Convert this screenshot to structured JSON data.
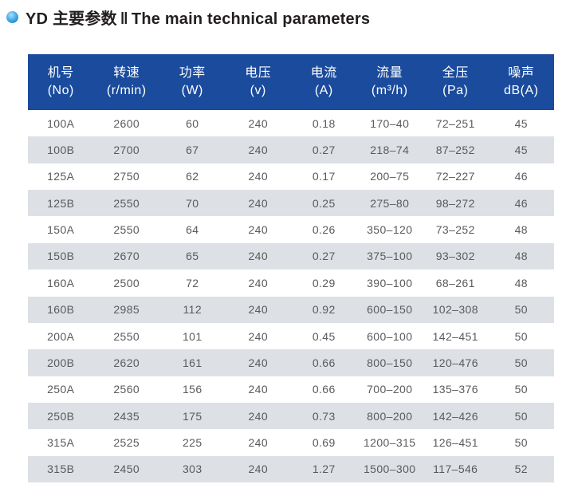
{
  "header": {
    "bullet_icon": "blue-sphere-bullet",
    "title_zh": "YD 主要参数",
    "separator": "‖",
    "title_en": "The main technical parameters"
  },
  "colors": {
    "header_bg": "#1a4b9d",
    "header_text": "#ffffff",
    "row_alt_bg": "#dde1e6",
    "row_text": "#595a5c",
    "title_text": "#231f20",
    "bullet_blue": "#0e74bd"
  },
  "table": {
    "columns": [
      {
        "line1": "机号",
        "line2": "(No)"
      },
      {
        "line1": "转速",
        "line2": "(r/min)"
      },
      {
        "line1": "功率",
        "line2": "(W)"
      },
      {
        "line1": "电压",
        "line2": "(v)"
      },
      {
        "line1": "电流",
        "line2": "(A)"
      },
      {
        "line1": "流量",
        "line2": "(m³/h)"
      },
      {
        "line1": "全压",
        "line2": "(Pa)"
      },
      {
        "line1": "噪声",
        "line2": "dB(A)"
      }
    ],
    "rows": [
      [
        "100A",
        "2600",
        "60",
        "240",
        "0.18",
        "170–40",
        "72–251",
        "45"
      ],
      [
        "100B",
        "2700",
        "67",
        "240",
        "0.27",
        "218–74",
        "87–252",
        "45"
      ],
      [
        "125A",
        "2750",
        "62",
        "240",
        "0.17",
        "200–75",
        "72–227",
        "46"
      ],
      [
        "125B",
        "2550",
        "70",
        "240",
        "0.25",
        "275–80",
        "98–272",
        "46"
      ],
      [
        "150A",
        "2550",
        "64",
        "240",
        "0.26",
        "350–120",
        "73–252",
        "48"
      ],
      [
        "150B",
        "2670",
        "65",
        "240",
        "0.27",
        "375–100",
        "93–302",
        "48"
      ],
      [
        "160A",
        "2500",
        "72",
        "240",
        "0.29",
        "390–100",
        "68–261",
        "48"
      ],
      [
        "160B",
        "2985",
        "112",
        "240",
        "0.92",
        "600–150",
        "102–308",
        "50"
      ],
      [
        "200A",
        "2550",
        "101",
        "240",
        "0.45",
        "600–100",
        "142–451",
        "50"
      ],
      [
        "200B",
        "2620",
        "161",
        "240",
        "0.66",
        "800–150",
        "120–476",
        "50"
      ],
      [
        "250A",
        "2560",
        "156",
        "240",
        "0.66",
        "700–200",
        "135–376",
        "50"
      ],
      [
        "250B",
        "2435",
        "175",
        "240",
        "0.73",
        "800–200",
        "142–426",
        "50"
      ],
      [
        "315A",
        "2525",
        "225",
        "240",
        "0.69",
        "1200–315",
        "126–451",
        "50"
      ],
      [
        "315B",
        "2450",
        "303",
        "240",
        "1.27",
        "1500–300",
        "117–546",
        "52"
      ]
    ]
  }
}
